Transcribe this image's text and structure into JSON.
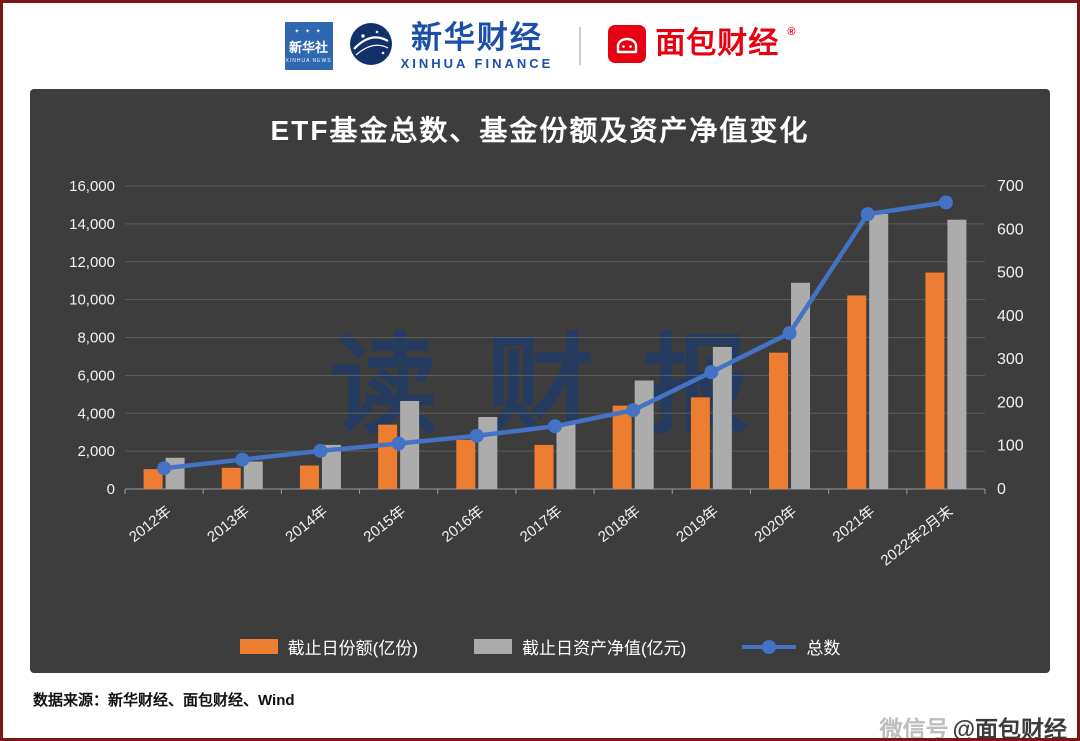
{
  "header": {
    "xinhua_news": {
      "name": "新华社",
      "en": "XINHUA NEWS",
      "stars": "✦ ✦ ✦"
    },
    "xinhua_finance": {
      "name": "新华财经",
      "en": "XINHUA FINANCE"
    },
    "bread_finance": {
      "name": "面包财经",
      "registered_mark": "®"
    }
  },
  "chart_data": {
    "type": "combo-bar-line",
    "title": "ETF基金总数、基金份额及资产净值变化",
    "watermark": "读财报",
    "panel_background": "#3d3d3d",
    "categories": [
      "2012年",
      "2013年",
      "2014年",
      "2015年",
      "2016年",
      "2017年",
      "2018年",
      "2019年",
      "2020年",
      "2021年",
      "2022年2月末"
    ],
    "series": [
      {
        "name": "截止日份额(亿份)",
        "type": "bar",
        "axis": "left",
        "color": "#ED7D31",
        "values": [
          1050,
          1120,
          1240,
          3400,
          2600,
          2330,
          4400,
          4840,
          7200,
          10220,
          11430
        ]
      },
      {
        "name": "截止日资产净值(亿元)",
        "type": "bar",
        "axis": "left",
        "color": "#ACACAC",
        "values": [
          1650,
          1450,
          2330,
          4650,
          3800,
          3430,
          5730,
          7500,
          10890,
          14520,
          14220
        ]
      },
      {
        "name": "总数",
        "type": "line",
        "axis": "right",
        "color": "#4472C4",
        "values": [
          48,
          68,
          88,
          105,
          123,
          145,
          182,
          270,
          360,
          635,
          662
        ]
      }
    ],
    "left_axis": {
      "min": 0,
      "max": 16000,
      "step": 2000,
      "tick_labels": [
        "0",
        "2,000",
        "4,000",
        "6,000",
        "8,000",
        "10,000",
        "12,000",
        "14,000",
        "16,000"
      ]
    },
    "right_axis": {
      "min": 0,
      "max": 700,
      "step": 100,
      "tick_labels": [
        "0",
        "100",
        "200",
        "300",
        "400",
        "500",
        "600",
        "700"
      ]
    },
    "grid": true,
    "legend_position": "bottom"
  },
  "footer": {
    "source": "数据来源：新华财经、面包财经、Wind",
    "watermark_prefix": "微信号",
    "watermark_account": "@面包财经"
  }
}
